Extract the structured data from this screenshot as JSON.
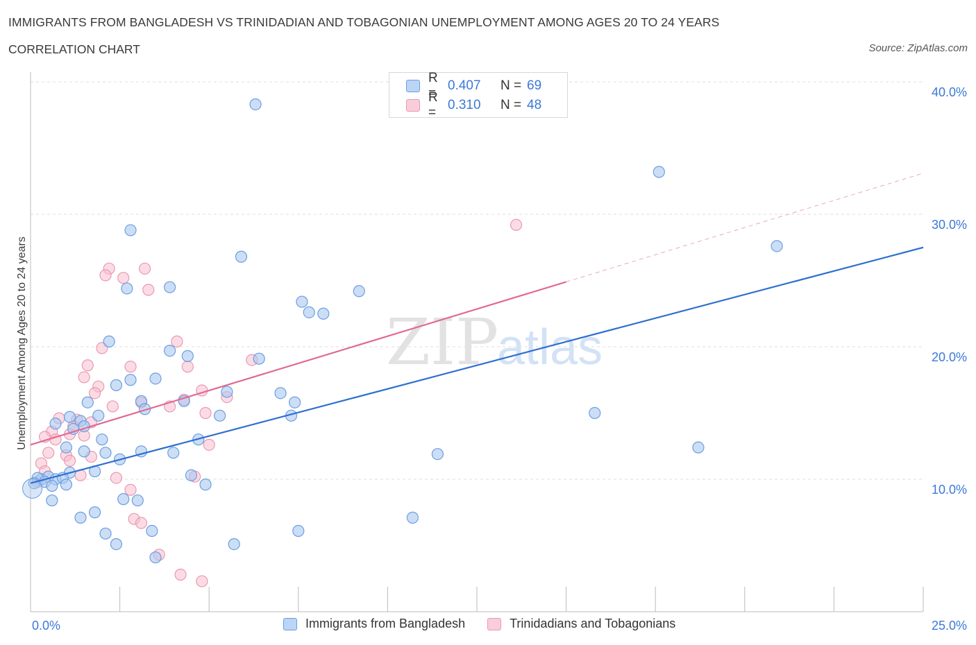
{
  "title": "IMMIGRANTS FROM BANGLADESH VS TRINIDADIAN AND TOBAGONIAN UNEMPLOYMENT AMONG AGES 20 TO 24 YEARS",
  "subtitle": "CORRELATION CHART",
  "source": "Source: ZipAtlas.com",
  "watermark": {
    "part1": "ZIP",
    "part2": "atlas"
  },
  "legend": {
    "rows": [
      {
        "r_label": "R =",
        "r_value": "0.407",
        "n_label": "N =",
        "n_value": "69"
      },
      {
        "r_label": "R =",
        "r_value": "0.310",
        "n_label": "N =",
        "n_value": "48"
      }
    ]
  },
  "bottom_legend": [
    "Immigrants from Bangladesh",
    "Trinidadians and Tobagonians"
  ],
  "colors": {
    "blue_fill": "#aac8f0",
    "blue_stroke": "#6a9ee0",
    "blue_line": "#2e6fd0",
    "pink_fill": "#f7bfd0",
    "pink_stroke": "#eb98b2",
    "pink_line": "#e06a92",
    "axis_text": "#3b78d8",
    "grid": "#dddddd"
  },
  "chart_data": {
    "type": "scatter",
    "title": "IMMIGRANTS FROM BANGLADESH VS TRINIDADIAN AND TOBAGONIAN UNEMPLOYMENT AMONG AGES 20 TO 24 YEARS",
    "xlabel": "",
    "ylabel": "Unemployment Among Ages 20 to 24 years",
    "xlim": [
      0,
      25
    ],
    "ylim": [
      0,
      40
    ],
    "x_tick_labels": [
      "0.0%",
      "25.0%"
    ],
    "y_ticks": [
      10,
      20,
      30,
      40
    ],
    "y_tick_labels": [
      "10.0%",
      "20.0%",
      "30.0%",
      "40.0%"
    ],
    "series": [
      {
        "name": "Immigrants from Bangladesh",
        "r": 0.407,
        "n": 69,
        "trend": {
          "x0": 0,
          "y0": 9.7,
          "x1": 25,
          "y1": 27.5
        },
        "points": [
          [
            6.3,
            38.3
          ],
          [
            17.6,
            33.2
          ],
          [
            20.9,
            27.6
          ],
          [
            2.8,
            28.8
          ],
          [
            5.9,
            26.8
          ],
          [
            2.7,
            24.4
          ],
          [
            3.9,
            24.5
          ],
          [
            9.2,
            24.2
          ],
          [
            7.6,
            23.4
          ],
          [
            7.8,
            22.6
          ],
          [
            8.2,
            22.5
          ],
          [
            2.2,
            20.4
          ],
          [
            3.9,
            19.7
          ],
          [
            4.4,
            19.3
          ],
          [
            6.4,
            19.1
          ],
          [
            2.8,
            17.5
          ],
          [
            3.5,
            17.6
          ],
          [
            2.4,
            17.1
          ],
          [
            5.5,
            16.6
          ],
          [
            7.0,
            16.5
          ],
          [
            1.6,
            15.8
          ],
          [
            3.1,
            15.9
          ],
          [
            4.3,
            15.9
          ],
          [
            7.4,
            15.8
          ],
          [
            3.2,
            15.3
          ],
          [
            15.8,
            15.0
          ],
          [
            1.9,
            14.8
          ],
          [
            5.3,
            14.8
          ],
          [
            7.3,
            14.8
          ],
          [
            1.1,
            14.7
          ],
          [
            1.4,
            14.4
          ],
          [
            1.5,
            14.0
          ],
          [
            0.7,
            14.2
          ],
          [
            1.2,
            13.8
          ],
          [
            2.0,
            13.0
          ],
          [
            4.7,
            13.0
          ],
          [
            1.0,
            12.4
          ],
          [
            18.7,
            12.4
          ],
          [
            1.5,
            12.1
          ],
          [
            2.1,
            12.0
          ],
          [
            3.1,
            12.1
          ],
          [
            4.0,
            12.0
          ],
          [
            11.4,
            11.9
          ],
          [
            2.5,
            11.5
          ],
          [
            1.8,
            10.6
          ],
          [
            1.1,
            10.5
          ],
          [
            4.5,
            10.3
          ],
          [
            0.3,
            10.0
          ],
          [
            0.5,
            10.2
          ],
          [
            0.7,
            10.0
          ],
          [
            0.9,
            10.1
          ],
          [
            0.2,
            10.1
          ],
          [
            0.4,
            9.8
          ],
          [
            1.0,
            9.6
          ],
          [
            0.6,
            9.5
          ],
          [
            0.1,
            9.7
          ],
          [
            4.9,
            9.6
          ],
          [
            0.6,
            8.4
          ],
          [
            2.6,
            8.5
          ],
          [
            3.0,
            8.4
          ],
          [
            1.8,
            7.5
          ],
          [
            1.4,
            7.1
          ],
          [
            10.7,
            7.1
          ],
          [
            3.4,
            6.1
          ],
          [
            7.5,
            6.1
          ],
          [
            2.1,
            5.9
          ],
          [
            2.4,
            5.1
          ],
          [
            5.7,
            5.1
          ],
          [
            3.5,
            4.1
          ]
        ]
      },
      {
        "name": "Trinidadians and Tobagonians",
        "r": 0.31,
        "n": 48,
        "trend": {
          "x0": 0,
          "y0": 12.6,
          "x1": 15,
          "y1": 24.9,
          "dash_x1": 25,
          "dash_y1": 33.1
        },
        "points": [
          [
            13.6,
            29.2
          ],
          [
            2.2,
            25.9
          ],
          [
            3.2,
            25.9
          ],
          [
            2.1,
            25.4
          ],
          [
            2.6,
            25.2
          ],
          [
            3.3,
            24.3
          ],
          [
            4.1,
            20.4
          ],
          [
            2.0,
            19.9
          ],
          [
            6.2,
            19.0
          ],
          [
            1.6,
            18.6
          ],
          [
            2.8,
            18.5
          ],
          [
            4.4,
            18.5
          ],
          [
            1.5,
            17.7
          ],
          [
            1.9,
            17.0
          ],
          [
            4.8,
            16.7
          ],
          [
            1.8,
            16.5
          ],
          [
            5.5,
            16.2
          ],
          [
            4.3,
            16.0
          ],
          [
            3.1,
            15.8
          ],
          [
            2.3,
            15.5
          ],
          [
            3.9,
            15.5
          ],
          [
            4.9,
            15.0
          ],
          [
            0.8,
            14.6
          ],
          [
            1.3,
            14.5
          ],
          [
            1.7,
            14.3
          ],
          [
            1.2,
            14.0
          ],
          [
            0.6,
            13.6
          ],
          [
            0.4,
            13.2
          ],
          [
            1.1,
            13.4
          ],
          [
            1.5,
            13.3
          ],
          [
            0.7,
            13.0
          ],
          [
            5.0,
            12.6
          ],
          [
            0.5,
            12.0
          ],
          [
            1.0,
            11.8
          ],
          [
            1.7,
            11.7
          ],
          [
            1.1,
            11.4
          ],
          [
            0.3,
            11.2
          ],
          [
            0.4,
            10.6
          ],
          [
            1.4,
            10.3
          ],
          [
            2.4,
            10.1
          ],
          [
            4.6,
            10.2
          ],
          [
            0.2,
            9.8
          ],
          [
            2.8,
            9.2
          ],
          [
            2.9,
            7.0
          ],
          [
            3.1,
            6.7
          ],
          [
            3.6,
            4.3
          ],
          [
            4.2,
            2.8
          ],
          [
            4.8,
            2.3
          ]
        ]
      }
    ]
  }
}
